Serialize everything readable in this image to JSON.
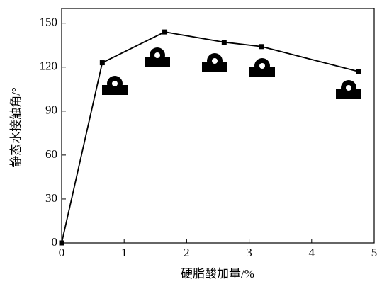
{
  "chart_data": {
    "type": "line",
    "x_label": "硬脂酸加量/%",
    "y_label": "静态水接触角/°",
    "series": [
      {
        "color": "#000000",
        "x": [
          0,
          0.65,
          1.65,
          2.6,
          3.2,
          4.75
        ],
        "values": [
          0,
          123,
          144,
          137,
          134,
          117
        ]
      }
    ],
    "xlim": [
      0,
      5
    ],
    "xticks": [
      0,
      1,
      2,
      3,
      4,
      5
    ],
    "ylim": [
      0,
      160
    ],
    "yticks": [
      0,
      30,
      60,
      90,
      120,
      150
    ]
  }
}
